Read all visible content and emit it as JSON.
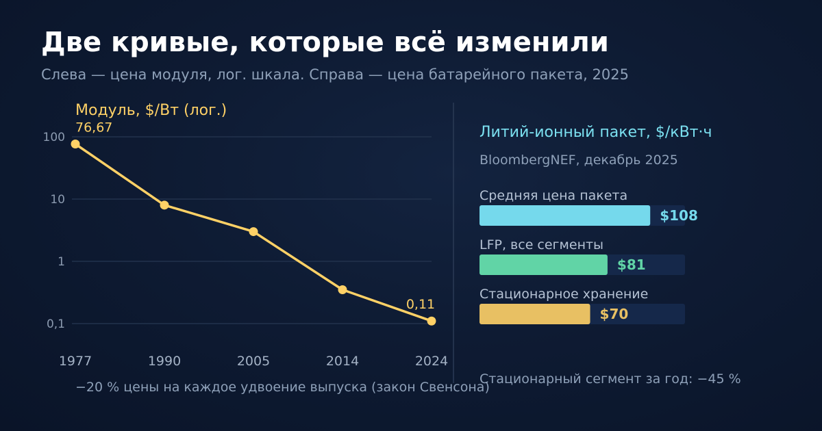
{
  "title": "Две кривые, которые всё изменили",
  "subtitle": "Слева — цена модуля, лог. шкала. Справа — цена батарейного пакета, 2025",
  "colors": {
    "module_line": "#ffd166",
    "bar_avg": "#75d9ec",
    "bar_lfp": "#61d4a6",
    "bar_storage": "#e8c063",
    "track": "#15284a",
    "grid": "#22324d",
    "divider": "#2a3a55"
  },
  "chart_data": [
    {
      "type": "line",
      "title": "Модуль, $/Вт (лог.)",
      "y_scale": "log",
      "ylim": [
        0.1,
        100
      ],
      "y_ticks": [
        {
          "value": 100,
          "label": "100"
        },
        {
          "value": 10,
          "label": "10"
        },
        {
          "value": 1,
          "label": "1"
        },
        {
          "value": 0.1,
          "label": "0,1"
        }
      ],
      "grid": true,
      "categories": [
        "1977",
        "1990",
        "2005",
        "2014",
        "2024"
      ],
      "values": [
        76.67,
        8,
        3,
        0.35,
        0.11
      ],
      "data_labels": [
        {
          "index": 0,
          "text": "76,67"
        },
        {
          "index": 4,
          "text": "0,11"
        }
      ],
      "annotation": "−20 % цены на каждое удвоение выпуска (закон Свенсона)"
    },
    {
      "type": "bar",
      "orientation": "horizontal",
      "title": "Литий-ионный пакет, $/кВт·ч",
      "source": "BloombergNEF, декабрь 2025",
      "xlim": [
        0,
        130
      ],
      "categories": [
        "Средняя цена пакета",
        "LFP, все сегменты",
        "Стационарное хранение"
      ],
      "values": [
        108,
        81,
        70
      ],
      "value_labels": [
        "$108",
        "$81",
        "$70"
      ],
      "annotation": "Стационарный сегмент за год: −45 %"
    }
  ]
}
